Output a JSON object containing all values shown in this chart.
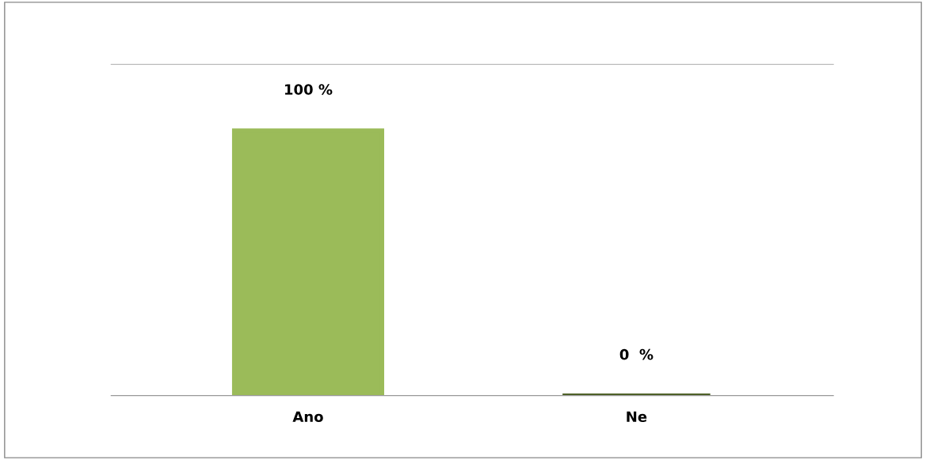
{
  "chart_data": {
    "type": "bar",
    "categories": [
      "Ano",
      "Ne"
    ],
    "values": [
      100,
      0
    ],
    "ylim": [
      0,
      125
    ],
    "colors": [
      "#9bbb59",
      "#4f6228"
    ],
    "value_labels": [
      "100 %",
      "0  %"
    ],
    "grid": false,
    "legend": false
  }
}
